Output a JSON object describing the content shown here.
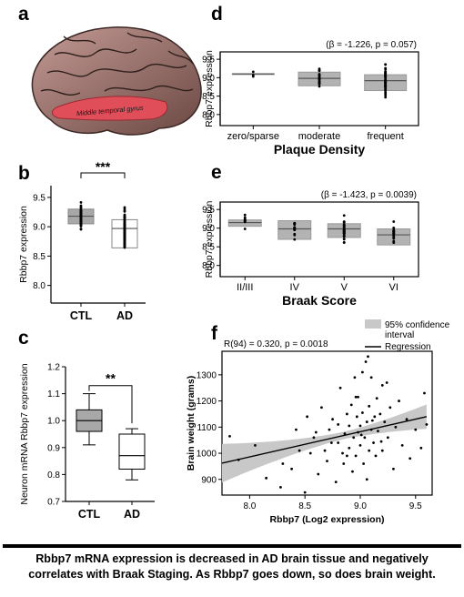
{
  "caption": {
    "line1": "Rbbp7 mRNA expression is decreased in AD brain tissue and negatively",
    "line2": "correlates with Braak Staging. As Rbbp7 goes down, so does brain weight."
  },
  "panel_labels": [
    "a",
    "b",
    "c",
    "d",
    "e",
    "f"
  ],
  "brain": {
    "label": "Middle temporal gyrus"
  },
  "chart_data": [
    {
      "id": "b",
      "type": "box",
      "ylabel": "Rbbp7 expression",
      "categories": [
        "CTL",
        "AD"
      ],
      "ylim": [
        7.7,
        9.7
      ],
      "yticks": [
        "8.0",
        "8.5",
        "9.0",
        "9.5"
      ],
      "boxes": [
        {
          "name": "CTL",
          "q1": 9.05,
          "median": 9.18,
          "q3": 9.3,
          "fill": "#a8a8a8"
        },
        {
          "name": "AD",
          "q1": 8.64,
          "median": 8.97,
          "q3": 9.12,
          "fill": "#ffffff"
        }
      ],
      "annotation": "***"
    },
    {
      "id": "c",
      "type": "box",
      "ylabel": "Neuron mRNA Rbbp7 expression",
      "categories": [
        "CTL",
        "AD"
      ],
      "ylim": [
        0.7,
        1.2
      ],
      "yticks": [
        "0.7",
        "0.8",
        "0.9",
        "1.0",
        "1.1",
        "1.2"
      ],
      "boxes": [
        {
          "name": "CTL",
          "min": 0.91,
          "q1": 0.96,
          "median": 1.0,
          "q3": 1.04,
          "max": 1.1,
          "fill": "#a8a8a8"
        },
        {
          "name": "AD",
          "min": 0.78,
          "q1": 0.82,
          "median": 0.87,
          "q3": 0.95,
          "max": 0.97,
          "fill": "#ffffff"
        }
      ],
      "annotation": "**"
    },
    {
      "id": "d",
      "type": "box",
      "ylabel": "Rbbp7 expression",
      "xlabel": "Plaque Density",
      "categories": [
        "zero/sparse",
        "moderate",
        "frequent"
      ],
      "ylim": [
        7.7,
        9.7
      ],
      "yticks": [
        "8.0",
        "8.5",
        "9.0",
        "9.5"
      ],
      "stat": "(β = -1.226, p = 0.057)",
      "boxes": [
        {
          "name": "zero/sparse",
          "q1": 9.09,
          "median": 9.1,
          "q3": 9.11
        },
        {
          "name": "moderate",
          "q1": 8.78,
          "median": 8.98,
          "q3": 9.15
        },
        {
          "name": "frequent",
          "q1": 8.65,
          "median": 8.92,
          "q3": 9.08
        }
      ]
    },
    {
      "id": "e",
      "type": "box",
      "ylabel": "Rbbp7 expression",
      "xlabel": "Braak Score",
      "categories": [
        "II/III",
        "IV",
        "V",
        "VI"
      ],
      "ylim": [
        7.7,
        9.7
      ],
      "yticks": [
        "8.0",
        "8.5",
        "9.0",
        "9.5"
      ],
      "stat": "(β = -1.423, p = 0.0039)",
      "boxes": [
        {
          "name": "II/III",
          "q1": 9.05,
          "median": 9.15,
          "q3": 9.22
        },
        {
          "name": "IV",
          "q1": 8.7,
          "median": 8.98,
          "q3": 9.2
        },
        {
          "name": "V",
          "q1": 8.75,
          "median": 8.98,
          "q3": 9.12
        },
        {
          "name": "VI",
          "q1": 8.55,
          "median": 8.82,
          "q3": 8.98
        }
      ]
    },
    {
      "id": "f",
      "type": "scatter",
      "xlabel": "Rbbp7 (Log2 expression)",
      "ylabel": "Brain weight (grams)",
      "xlim": [
        7.75,
        9.65
      ],
      "ylim": [
        840,
        1390
      ],
      "xticks": [
        "8.0",
        "8.5",
        "9.0",
        "9.5"
      ],
      "yticks": [
        "900",
        "1000",
        "1100",
        "1200",
        "1300"
      ],
      "stat": "R(94) = 0.320, p = 0.0018",
      "legend": {
        "ci_label_1": "95% confidence",
        "ci_label_2": "interval",
        "reg_label": "Regression"
      },
      "regression": {
        "x0": 7.75,
        "y0": 962,
        "x1": 9.6,
        "y1": 1140
      },
      "points": [
        [
          7.82,
          1065
        ],
        [
          7.9,
          975
        ],
        [
          8.05,
          1030
        ],
        [
          8.15,
          905
        ],
        [
          8.28,
          870
        ],
        [
          8.3,
          960
        ],
        [
          8.38,
          940
        ],
        [
          8.42,
          1090
        ],
        [
          8.45,
          1010
        ],
        [
          8.5,
          850
        ],
        [
          8.52,
          1140
        ],
        [
          8.55,
          1000
        ],
        [
          8.58,
          1060
        ],
        [
          8.62,
          920
        ],
        [
          8.65,
          1175
        ],
        [
          8.68,
          1010
        ],
        [
          8.7,
          970
        ],
        [
          8.72,
          1090
        ],
        [
          8.75,
          1130
        ],
        [
          8.78,
          890
        ],
        [
          8.8,
          1040
        ],
        [
          8.8,
          1110
        ],
        [
          8.82,
          1250
        ],
        [
          8.84,
          1000
        ],
        [
          8.85,
          960
        ],
        [
          8.86,
          1075
        ],
        [
          8.88,
          1150
        ],
        [
          8.9,
          1020
        ],
        [
          8.9,
          1105
        ],
        [
          8.92,
          1185
        ],
        [
          8.93,
          930
        ],
        [
          8.94,
          1060
        ],
        [
          8.95,
          1290
        ],
        [
          8.96,
          990
        ],
        [
          8.97,
          1140
        ],
        [
          8.98,
          1080
        ],
        [
          8.98,
          1215
        ],
        [
          9.0,
          1030
        ],
        [
          9.0,
          1105
        ],
        [
          9.02,
          1155
        ],
        [
          9.02,
          1310
        ],
        [
          9.03,
          960
        ],
        [
          9.04,
          1060
        ],
        [
          9.05,
          1350
        ],
        [
          9.06,
          1120
        ],
        [
          9.07,
          1370
        ],
        [
          9.08,
          1010
        ],
        [
          9.08,
          1180
        ],
        [
          9.1,
          1090
        ],
        [
          9.1,
          1290
        ],
        [
          9.12,
          1040
        ],
        [
          9.13,
          1140
        ],
        [
          9.14,
          990
        ],
        [
          9.15,
          1210
        ],
        [
          9.16,
          1085
        ],
        [
          9.18,
          1150
        ],
        [
          9.2,
          1010
        ],
        [
          9.2,
          1260
        ],
        [
          9.22,
          1120
        ],
        [
          9.25,
          1060
        ],
        [
          9.27,
          1175
        ],
        [
          9.3,
          940
        ],
        [
          9.32,
          1100
        ],
        [
          9.35,
          1200
        ],
        [
          9.38,
          1030
        ],
        [
          9.42,
          1130
        ],
        [
          9.45,
          980
        ],
        [
          9.5,
          1090
        ],
        [
          9.55,
          1020
        ],
        [
          9.58,
          1230
        ],
        [
          9.6,
          1110
        ],
        [
          8.6,
          1080
        ],
        [
          8.88,
          990
        ],
        [
          9.06,
          900
        ],
        [
          9.11,
          1125
        ],
        [
          8.74,
          1040
        ],
        [
          9.01,
          1070
        ],
        [
          9.19,
          1045
        ],
        [
          8.96,
          1215
        ],
        [
          9.24,
          1270
        ]
      ]
    }
  ]
}
